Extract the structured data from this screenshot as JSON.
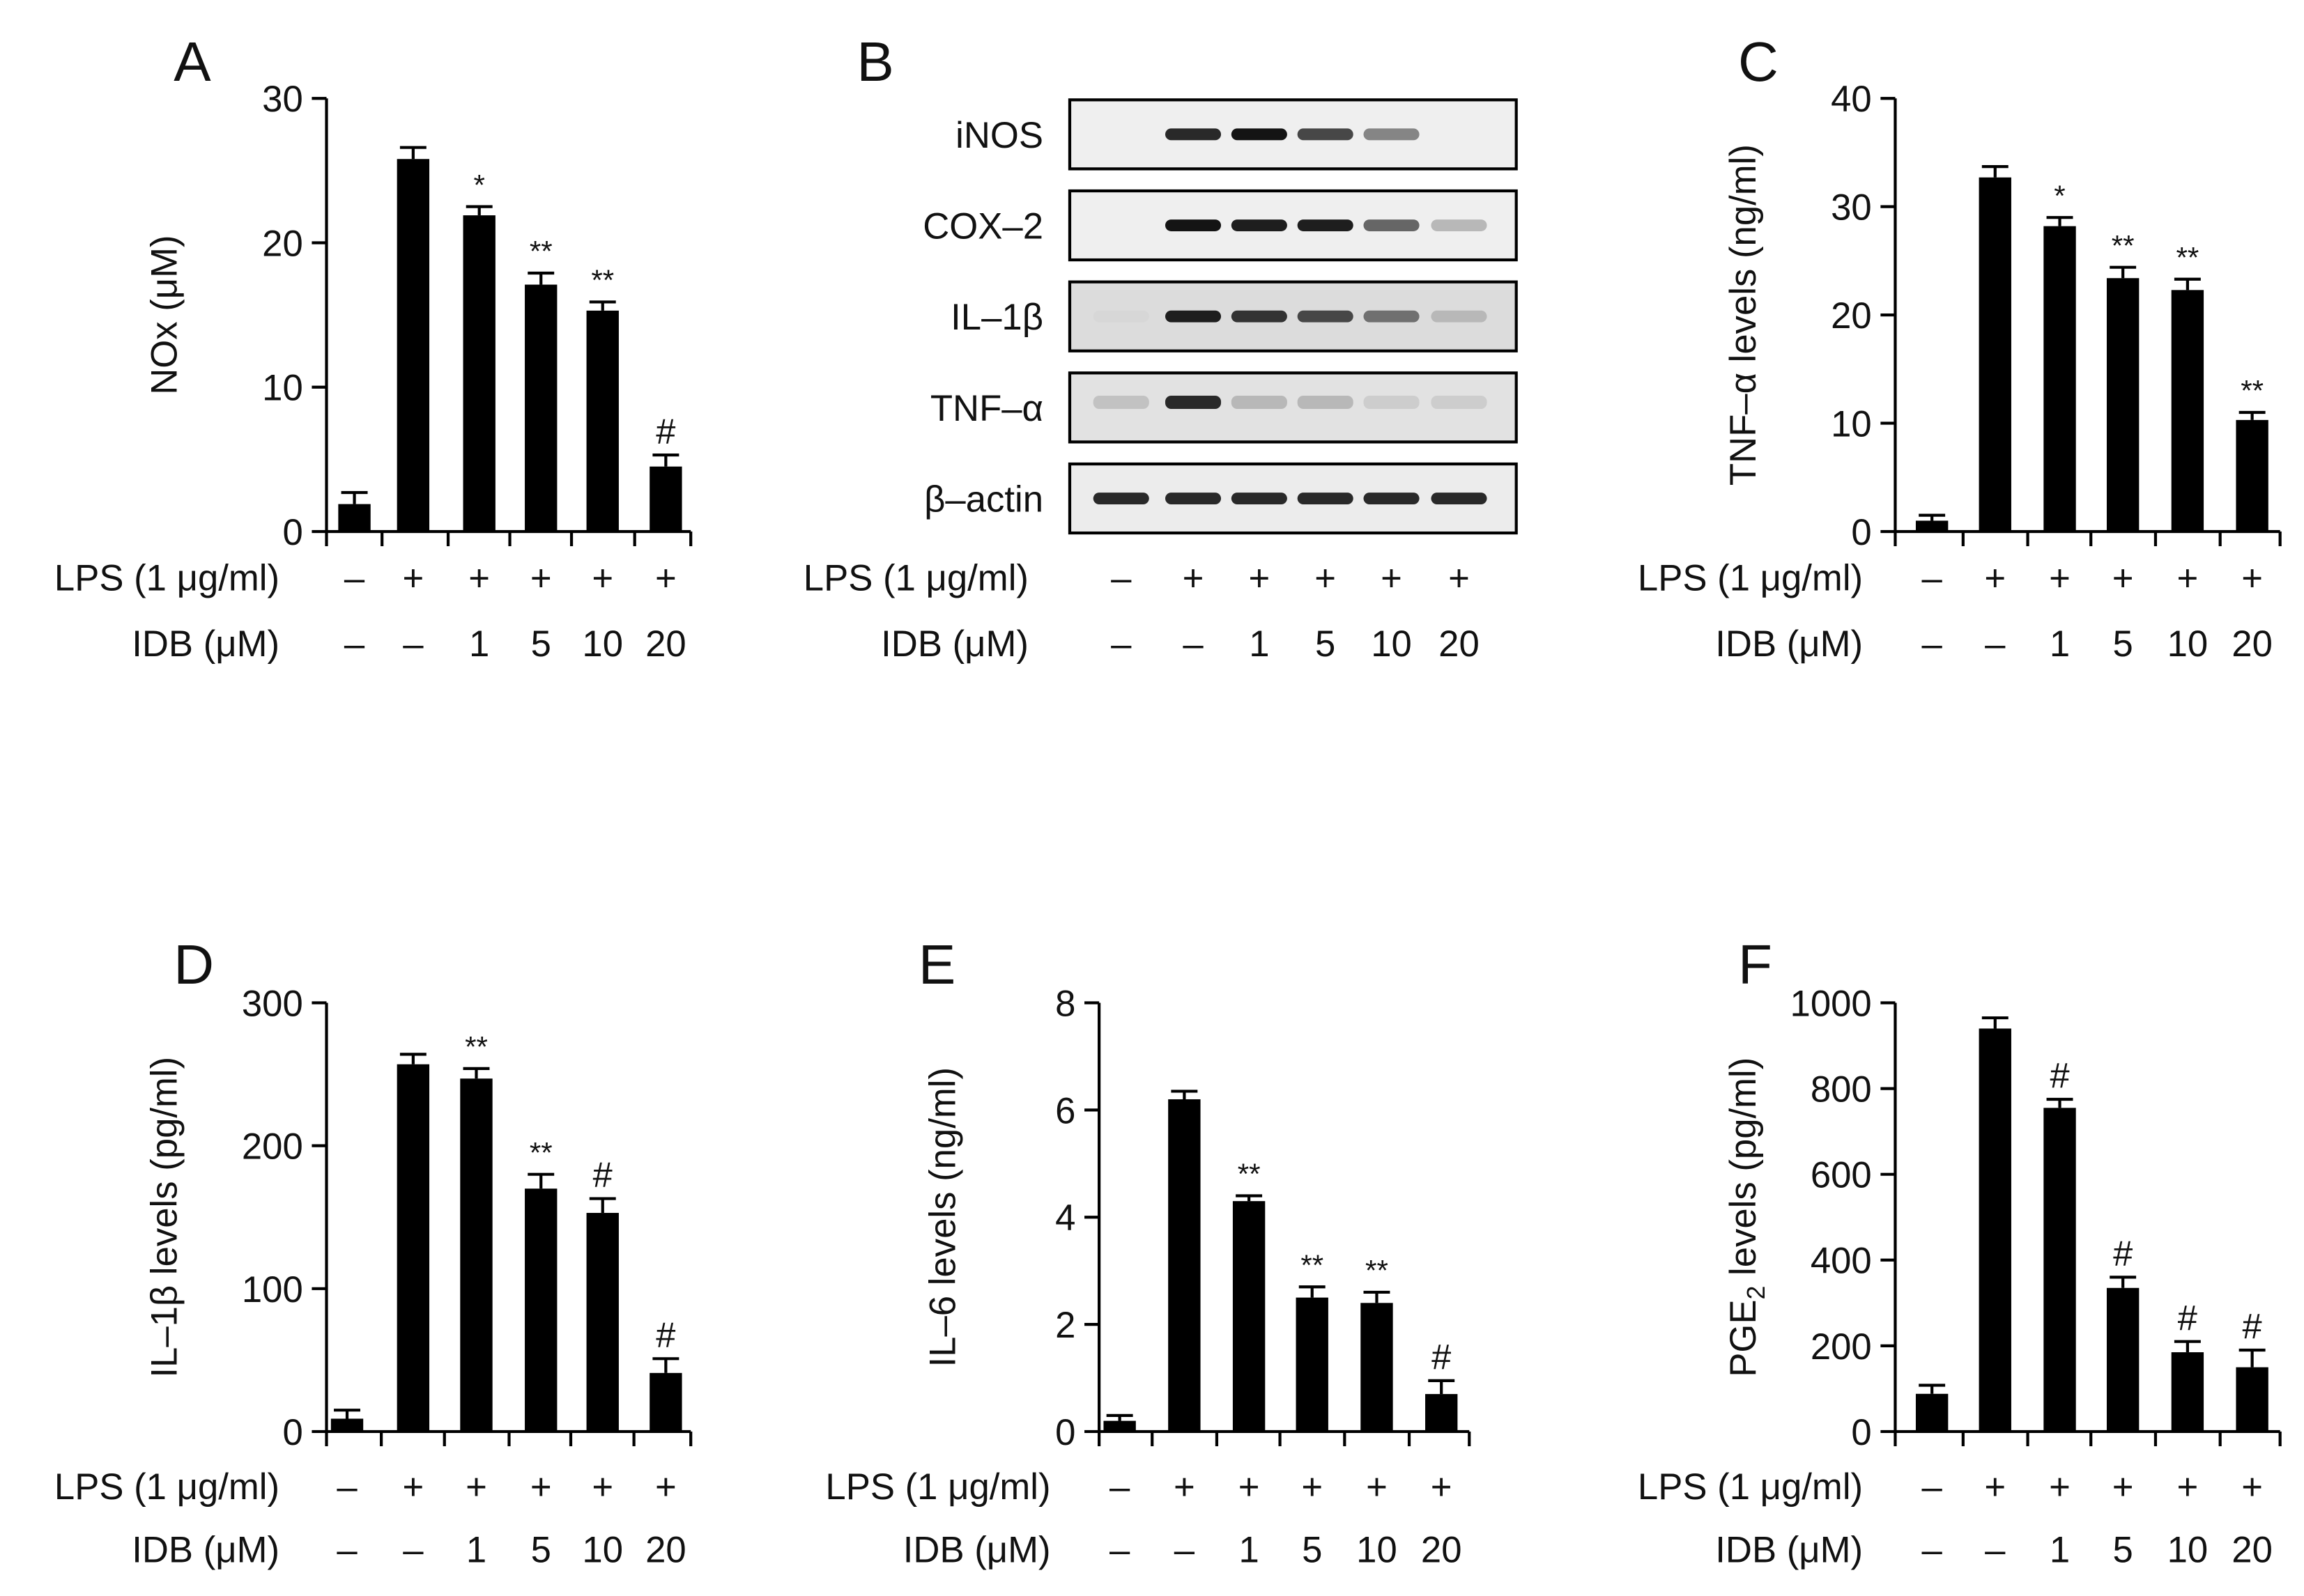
{
  "conditions": {
    "lps_label": "LPS (1 μg/ml)",
    "idb_label": "IDB (μM)",
    "lps": [
      "–",
      "+",
      "+",
      "+",
      "+",
      "+"
    ],
    "idb": [
      "–",
      "–",
      "1",
      "5",
      "10",
      "20"
    ]
  },
  "blot": {
    "letter": "B",
    "proteins": [
      "iNOS",
      "COX–2",
      "IL–1β",
      "TNF–α",
      "β–actin"
    ],
    "band_intensity": [
      [
        0,
        0.9,
        1.0,
        0.75,
        0.45,
        0
      ],
      [
        0,
        1.0,
        0.95,
        0.95,
        0.6,
        0.2
      ],
      [
        0.05,
        0.95,
        0.85,
        0.75,
        0.55,
        0.2
      ],
      [
        0.15,
        0.9,
        0.2,
        0.2,
        0.1,
        0.1
      ],
      [
        0.9,
        0.9,
        0.9,
        0.9,
        0.9,
        0.9
      ]
    ]
  },
  "chart_data": [
    {
      "letter": "A",
      "type": "bar",
      "ylabel": "NOx (μM)",
      "ylim": [
        0,
        30
      ],
      "yticks": [
        "0",
        "10",
        "20",
        "30"
      ],
      "ytick_values": [
        0,
        10,
        20,
        30
      ],
      "values": [
        1.9,
        25.8,
        21.9,
        17.1,
        15.3,
        4.5
      ],
      "errors": [
        0.8,
        0.8,
        0.6,
        0.8,
        0.6,
        0.8
      ],
      "annotations": [
        "",
        "",
        "*",
        "**",
        "**",
        "#"
      ]
    },
    {
      "letter": "C",
      "type": "bar",
      "ylabel": "TNF–α levels (ng/ml)",
      "ylim": [
        0,
        40
      ],
      "yticks": [
        "0",
        "10",
        "20",
        "30",
        "40"
      ],
      "ytick_values": [
        0,
        10,
        20,
        30,
        40
      ],
      "values": [
        1.0,
        32.7,
        28.2,
        23.4,
        22.3,
        10.3
      ],
      "errors": [
        0.5,
        1.0,
        0.8,
        1.0,
        1.0,
        0.7
      ],
      "annotations": [
        "",
        "",
        "*",
        "**",
        "**",
        "**"
      ]
    },
    {
      "letter": "D",
      "type": "bar",
      "ylabel": "IL–1β levels (pg/ml)",
      "ylim": [
        0,
        300
      ],
      "yticks": [
        "0",
        "100",
        "200",
        "300"
      ],
      "ytick_values": [
        0,
        100,
        200,
        300
      ],
      "values": [
        9,
        257,
        247,
        170,
        153,
        41
      ],
      "errors": [
        6,
        7,
        7,
        10,
        10,
        10
      ],
      "annotations": [
        "",
        "",
        "**",
        "**",
        "#",
        "#"
      ]
    },
    {
      "letter": "E",
      "type": "bar",
      "ylabel": "IL–6 levels (ng/ml)",
      "ylim": [
        0,
        8
      ],
      "yticks": [
        "0",
        "2",
        "4",
        "6",
        "8"
      ],
      "ytick_values": [
        0,
        2,
        4,
        6,
        8
      ],
      "values": [
        0.2,
        6.2,
        4.3,
        2.5,
        2.4,
        0.7
      ],
      "errors": [
        0.1,
        0.15,
        0.1,
        0.2,
        0.2,
        0.25
      ],
      "annotations": [
        "",
        "",
        "**",
        "**",
        "**",
        "#"
      ]
    },
    {
      "letter": "F",
      "type": "bar",
      "ylabel": "PGE2 levels (pg/ml)",
      "ylim": [
        0,
        1000
      ],
      "yticks": [
        "0",
        "200",
        "400",
        "600",
        "800",
        "1000"
      ],
      "ytick_values": [
        0,
        200,
        400,
        600,
        800,
        1000
      ],
      "values": [
        88,
        940,
        755,
        335,
        185,
        150
      ],
      "errors": [
        20,
        25,
        20,
        25,
        25,
        40
      ],
      "annotations": [
        "",
        "",
        "#",
        "#",
        "#",
        "#"
      ]
    }
  ]
}
